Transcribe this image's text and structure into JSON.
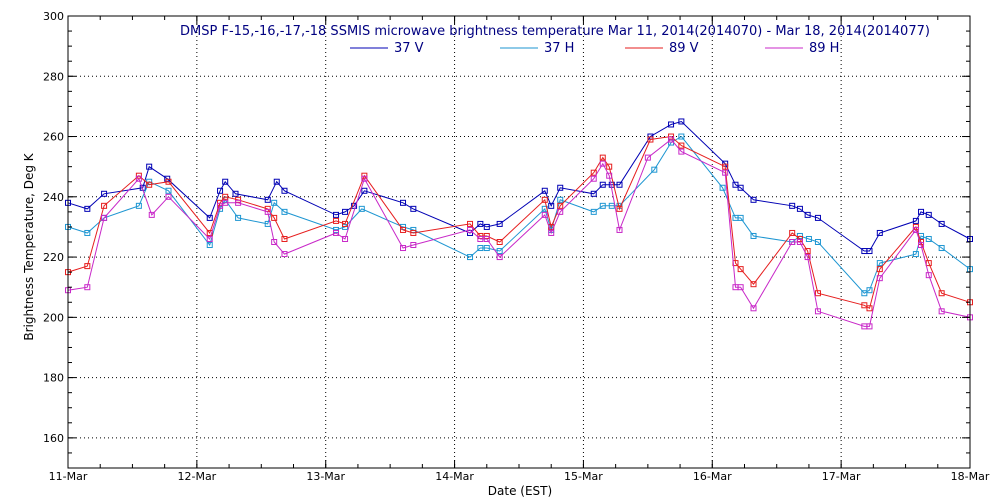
{
  "chart_data": {
    "type": "line",
    "title": "DMSP F-15,-16,-17,-18 SSMIS microwave brightness temperature Mar 11, 2014(2014070) - Mar 18, 2014(2014077)",
    "xlabel": "Date (EST)",
    "ylabel": "Brightness Temperature, Deg K",
    "xlim": [
      0,
      7
    ],
    "ylim": [
      150,
      300
    ],
    "yticks": [
      160,
      180,
      200,
      220,
      240,
      260,
      280,
      300
    ],
    "xticks": [
      {
        "pos": 0,
        "label": "11-Mar"
      },
      {
        "pos": 1,
        "label": "12-Mar"
      },
      {
        "pos": 2,
        "label": "13-Mar"
      },
      {
        "pos": 3,
        "label": "14-Mar"
      },
      {
        "pos": 4,
        "label": "15-Mar"
      },
      {
        "pos": 5,
        "label": "16-Mar"
      },
      {
        "pos": 6,
        "label": "17-Mar"
      },
      {
        "pos": 7,
        "label": "18-Mar"
      }
    ],
    "grid": true,
    "legend_position": "top-center",
    "x_unit": "days since 11-Mar 00:00 EST",
    "series": [
      {
        "name": "37 V",
        "color": "#0000b4",
        "points": [
          [
            0,
            238
          ],
          [
            0.15,
            236
          ],
          [
            0.28,
            241
          ],
          [
            0.58,
            243
          ],
          [
            0.63,
            250
          ],
          [
            0.77,
            246
          ],
          [
            1.1,
            233
          ],
          [
            1.18,
            242
          ],
          [
            1.22,
            245
          ],
          [
            1.3,
            241
          ],
          [
            1.55,
            239
          ],
          [
            1.62,
            245
          ],
          [
            1.68,
            242
          ],
          [
            2.08,
            234
          ],
          [
            2.15,
            235
          ],
          [
            2.22,
            237
          ],
          [
            2.3,
            242
          ],
          [
            2.6,
            238
          ],
          [
            2.68,
            236
          ],
          [
            3.12,
            228
          ],
          [
            3.2,
            231
          ],
          [
            3.25,
            230
          ],
          [
            3.35,
            231
          ],
          [
            3.7,
            242
          ],
          [
            3.75,
            237
          ],
          [
            3.82,
            243
          ],
          [
            4.08,
            241
          ],
          [
            4.15,
            244
          ],
          [
            4.22,
            244
          ],
          [
            4.28,
            244
          ],
          [
            4.52,
            260
          ],
          [
            4.68,
            264
          ],
          [
            4.76,
            265
          ],
          [
            5.1,
            251
          ],
          [
            5.18,
            244
          ],
          [
            5.22,
            243
          ],
          [
            5.32,
            239
          ],
          [
            5.62,
            237
          ],
          [
            5.68,
            236
          ],
          [
            5.74,
            234
          ],
          [
            5.82,
            233
          ],
          [
            6.18,
            222
          ],
          [
            6.22,
            222
          ],
          [
            6.3,
            228
          ],
          [
            6.58,
            232
          ],
          [
            6.62,
            235
          ],
          [
            6.68,
            234
          ],
          [
            6.78,
            231
          ],
          [
            7,
            226
          ]
        ]
      },
      {
        "name": "37 H",
        "color": "#1e96d2",
        "points": [
          [
            0,
            230
          ],
          [
            0.15,
            228
          ],
          [
            0.28,
            233
          ],
          [
            0.55,
            237
          ],
          [
            0.63,
            245
          ],
          [
            0.78,
            242
          ],
          [
            1.1,
            224
          ],
          [
            1.18,
            236
          ],
          [
            1.22,
            239
          ],
          [
            1.32,
            233
          ],
          [
            1.55,
            231
          ],
          [
            1.6,
            238
          ],
          [
            1.68,
            235
          ],
          [
            2.08,
            229
          ],
          [
            2.15,
            230
          ],
          [
            2.28,
            236
          ],
          [
            2.6,
            230
          ],
          [
            2.68,
            229
          ],
          [
            3.12,
            220
          ],
          [
            3.2,
            223
          ],
          [
            3.25,
            223
          ],
          [
            3.35,
            222
          ],
          [
            3.7,
            236
          ],
          [
            3.75,
            229
          ],
          [
            3.82,
            239
          ],
          [
            4.08,
            235
          ],
          [
            4.15,
            237
          ],
          [
            4.22,
            237
          ],
          [
            4.28,
            237
          ],
          [
            4.55,
            249
          ],
          [
            4.68,
            258
          ],
          [
            4.76,
            260
          ],
          [
            5.08,
            243
          ],
          [
            5.18,
            233
          ],
          [
            5.22,
            233
          ],
          [
            5.32,
            227
          ],
          [
            5.62,
            225
          ],
          [
            5.68,
            227
          ],
          [
            5.75,
            226
          ],
          [
            5.82,
            225
          ],
          [
            6.18,
            208
          ],
          [
            6.22,
            209
          ],
          [
            6.3,
            218
          ],
          [
            6.58,
            221
          ],
          [
            6.62,
            227
          ],
          [
            6.68,
            226
          ],
          [
            6.78,
            223
          ],
          [
            7,
            216
          ]
        ]
      },
      {
        "name": "89 V",
        "color": "#e61e1e",
        "points": [
          [
            0,
            215
          ],
          [
            0.15,
            217
          ],
          [
            0.28,
            237
          ],
          [
            0.55,
            247
          ],
          [
            0.63,
            244
          ],
          [
            0.78,
            245
          ],
          [
            1.1,
            228
          ],
          [
            1.18,
            238
          ],
          [
            1.22,
            240
          ],
          [
            1.32,
            239
          ],
          [
            1.55,
            236
          ],
          [
            1.6,
            233
          ],
          [
            1.68,
            226
          ],
          [
            2.08,
            232
          ],
          [
            2.15,
            231
          ],
          [
            2.3,
            247
          ],
          [
            2.6,
            229
          ],
          [
            2.68,
            228
          ],
          [
            3.12,
            231
          ],
          [
            3.2,
            227
          ],
          [
            3.25,
            227
          ],
          [
            3.35,
            225
          ],
          [
            3.7,
            239
          ],
          [
            3.75,
            230
          ],
          [
            3.82,
            237
          ],
          [
            4.08,
            248
          ],
          [
            4.15,
            253
          ],
          [
            4.2,
            250
          ],
          [
            4.28,
            236
          ],
          [
            4.52,
            259
          ],
          [
            4.68,
            260
          ],
          [
            4.76,
            257
          ],
          [
            5.1,
            250
          ],
          [
            5.18,
            218
          ],
          [
            5.22,
            216
          ],
          [
            5.32,
            211
          ],
          [
            5.62,
            228
          ],
          [
            5.68,
            226
          ],
          [
            5.74,
            222
          ],
          [
            5.82,
            208
          ],
          [
            6.18,
            204
          ],
          [
            6.22,
            203
          ],
          [
            6.3,
            216
          ],
          [
            6.58,
            230
          ],
          [
            6.62,
            225
          ],
          [
            6.68,
            218
          ],
          [
            6.78,
            208
          ],
          [
            7,
            205
          ]
        ]
      },
      {
        "name": "89 H",
        "color": "#c828c8",
        "points": [
          [
            0,
            209
          ],
          [
            0.15,
            210
          ],
          [
            0.28,
            233
          ],
          [
            0.55,
            246
          ],
          [
            0.65,
            234
          ],
          [
            0.78,
            240
          ],
          [
            1.1,
            226
          ],
          [
            1.18,
            237
          ],
          [
            1.22,
            238
          ],
          [
            1.32,
            238
          ],
          [
            1.55,
            235
          ],
          [
            1.6,
            225
          ],
          [
            1.68,
            221
          ],
          [
            2.08,
            228
          ],
          [
            2.15,
            226
          ],
          [
            2.3,
            246
          ],
          [
            2.6,
            223
          ],
          [
            2.68,
            224
          ],
          [
            3.12,
            229
          ],
          [
            3.2,
            226
          ],
          [
            3.25,
            226
          ],
          [
            3.35,
            220
          ],
          [
            3.7,
            234
          ],
          [
            3.75,
            228
          ],
          [
            3.82,
            235
          ],
          [
            4.08,
            246
          ],
          [
            4.15,
            251
          ],
          [
            4.2,
            247
          ],
          [
            4.28,
            229
          ],
          [
            4.5,
            253
          ],
          [
            4.68,
            259
          ],
          [
            4.76,
            255
          ],
          [
            5.1,
            248
          ],
          [
            5.18,
            210
          ],
          [
            5.22,
            210
          ],
          [
            5.32,
            203
          ],
          [
            5.62,
            225
          ],
          [
            5.68,
            225
          ],
          [
            5.74,
            220
          ],
          [
            5.82,
            202
          ],
          [
            6.18,
            197
          ],
          [
            6.22,
            197
          ],
          [
            6.3,
            213
          ],
          [
            6.58,
            229
          ],
          [
            6.62,
            224
          ],
          [
            6.68,
            214
          ],
          [
            6.78,
            202
          ],
          [
            7,
            200
          ]
        ]
      }
    ]
  }
}
